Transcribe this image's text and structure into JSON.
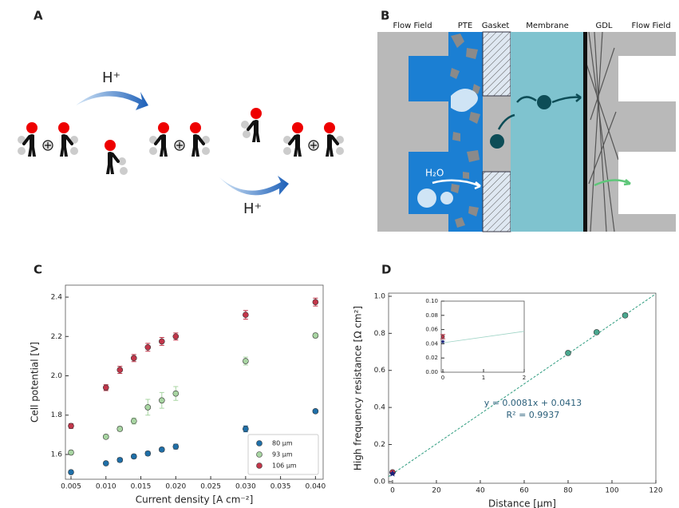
{
  "panels": {
    "a": "A",
    "b": "B",
    "c": "C",
    "d": "D"
  },
  "diagram_a": {
    "proton_labels": [
      "H⁺",
      "H⁺"
    ]
  },
  "diagram_b": {
    "labels": [
      "Flow Field",
      "PTE",
      "Gasket",
      "Membrane",
      "GDL",
      "Flow Field"
    ],
    "water": "H₂O"
  },
  "chart_data": [
    {
      "type": "scatter",
      "xlabel": "Current density [A cm⁻²]",
      "ylabel": "Cell potential [V]",
      "x": [
        0.005,
        0.01,
        0.012,
        0.014,
        0.016,
        0.018,
        0.02,
        0.03,
        0.04
      ],
      "series": [
        {
          "name": "80 µm",
          "color": "#1f6fa8",
          "values": [
            1.51,
            1.555,
            1.572,
            1.59,
            1.605,
            1.625,
            1.64,
            1.73,
            1.82
          ],
          "errors": [
            0.008,
            0.008,
            0.01,
            0.01,
            0.01,
            0.01,
            0.012,
            0.015,
            0.008
          ]
        },
        {
          "name": "93 µm",
          "color": "#a8d5a2",
          "values": [
            1.61,
            1.69,
            1.73,
            1.77,
            1.84,
            1.875,
            1.91,
            2.075,
            2.205
          ],
          "errors": [
            0.01,
            0.01,
            0.012,
            0.015,
            0.04,
            0.04,
            0.035,
            0.02,
            0.012
          ]
        },
        {
          "name": "106 µm",
          "color": "#c2364a",
          "values": [
            1.745,
            1.94,
            2.03,
            2.09,
            2.145,
            2.175,
            2.2,
            2.31,
            2.375
          ],
          "errors": [
            0.012,
            0.015,
            0.018,
            0.018,
            0.02,
            0.02,
            0.018,
            0.022,
            0.02
          ]
        }
      ],
      "xlim": [
        0.0042,
        0.0411
      ],
      "xticks": [
        0.005,
        {
          "value": 0.01,
          "label": "0.010"
        },
        0.015,
        {
          "value": 0.02,
          "label": "0.020"
        },
        0.025,
        {
          "value": 0.03,
          "label": "0.030"
        },
        0.035,
        {
          "value": 0.04,
          "label": "0.040"
        }
      ],
      "ylim": [
        1.474,
        2.461
      ],
      "yticks": [
        1.6,
        1.8,
        {
          "value": 2,
          "label": "2.0"
        },
        2.2,
        2.4
      ],
      "legend": "lower right"
    },
    {
      "type": "scatter",
      "xlabel": "Distance [µm]",
      "ylabel": "High frequency resistance [Ω cm²]",
      "annotation": [
        "y = 0.0081x + 0.0413",
        "R² = 0.9937"
      ],
      "fit": {
        "slope": 0.0081,
        "intercept": 0.0413,
        "color": "#2e9c7f"
      },
      "series": [
        {
          "color": "#4aa88f",
          "marker": "circle",
          "x": [
            80,
            93,
            106
          ],
          "values": [
            0.694,
            0.806,
            0.897
          ],
          "errors": [
            0.01,
            0.01,
            0.01
          ]
        },
        {
          "color": "#c2364a",
          "marker": "circle",
          "x": [
            0
          ],
          "values": [
            0.05
          ],
          "errors": [
            0.003
          ]
        },
        {
          "color": "#1a237e",
          "marker": "star",
          "x": [
            0
          ],
          "values": [
            0.043
          ],
          "errors": [
            0
          ]
        }
      ],
      "xlim": [
        -1.8,
        120
      ],
      "xticks": [
        0,
        20,
        40,
        60,
        80,
        100,
        120
      ],
      "ylim": [
        -0.009,
        1.017
      ],
      "yticks": [
        {
          "value": 0,
          "label": "0.0"
        },
        0.2,
        0.4,
        0.6,
        0.8,
        {
          "value": 1,
          "label": "1.0"
        }
      ],
      "inset": {
        "xlim": [
          -0.04,
          2
        ],
        "xticks": [
          0,
          1,
          2
        ],
        "ylim": [
          0,
          0.1
        ],
        "yticks": [
          {
            "value": 0,
            "label": "0.00"
          },
          0.02,
          0.04,
          0.06,
          0.08,
          {
            "value": 0.1,
            "label": "0.10"
          }
        ]
      }
    }
  ]
}
